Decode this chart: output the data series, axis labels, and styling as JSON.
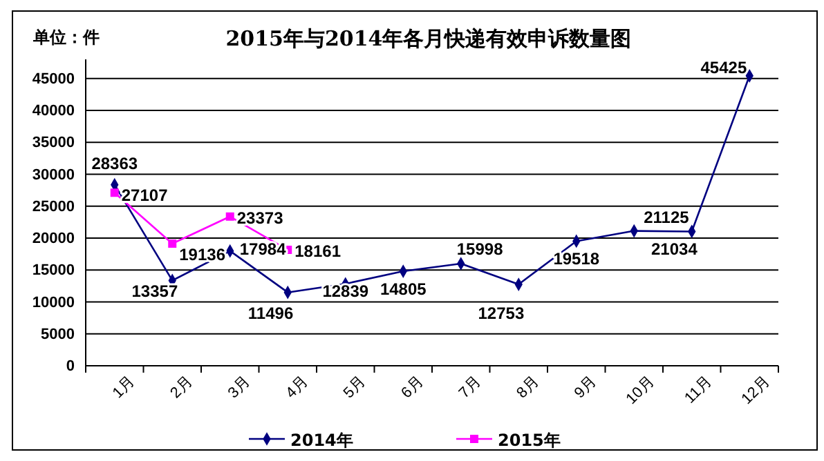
{
  "chart_data": {
    "type": "line",
    "title": "2015年与2014年各月快递有效申诉数量图",
    "ylabel": "单位：件",
    "categories": [
      "1月",
      "2月",
      "3月",
      "4月",
      "5月",
      "6月",
      "7月",
      "8月",
      "9月",
      "10月",
      "11月",
      "12月"
    ],
    "series": [
      {
        "name": "2014年",
        "color": "#000080",
        "marker": "diamond",
        "values": [
          28363,
          13357,
          17984,
          11496,
          12839,
          14805,
          15998,
          12753,
          19518,
          21125,
          21034,
          45425
        ]
      },
      {
        "name": "2015年",
        "color": "#ff00ff",
        "marker": "square",
        "values": [
          27107,
          19136,
          23373,
          18161,
          null,
          null,
          null,
          null,
          null,
          null,
          null,
          null
        ]
      }
    ],
    "ylim": [
      0,
      48000
    ],
    "yticks": [
      0,
      5000,
      10000,
      15000,
      20000,
      25000,
      30000,
      35000,
      40000,
      45000
    ],
    "grid": "y",
    "legend": "bottom",
    "data_labels": true,
    "line_style": "solid"
  }
}
